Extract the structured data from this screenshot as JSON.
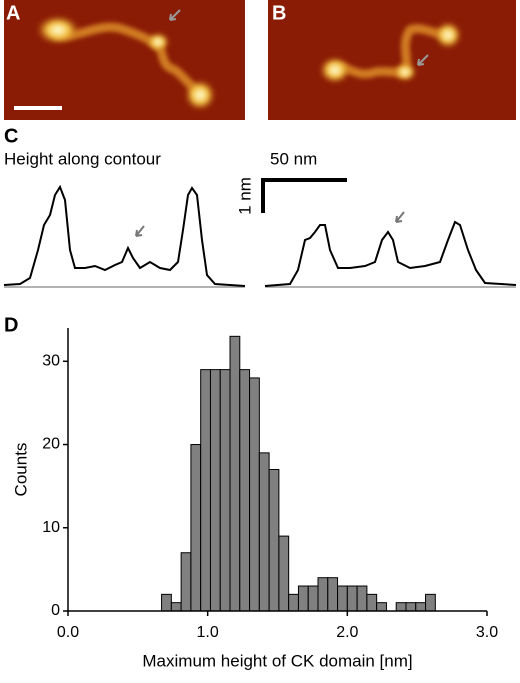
{
  "panels": {
    "a": "A",
    "b": "B",
    "c": "C",
    "d": "D"
  },
  "profile_title": "Height along contour",
  "scale_x": "50 nm",
  "scale_y": "1 nm",
  "chart_data": {
    "type": "histogram",
    "xlabel": "Maximum height of CK domain [nm]",
    "ylabel": "Counts",
    "bins": [
      0.67,
      0.74,
      0.81,
      0.88,
      0.95,
      1.02,
      1.09,
      1.16,
      1.23,
      1.3,
      1.37,
      1.44,
      1.51,
      1.58,
      1.65,
      1.72,
      1.79,
      1.86,
      1.93,
      2.0,
      2.07,
      2.14,
      2.21,
      2.28,
      2.35,
      2.42,
      2.49,
      2.56,
      2.63
    ],
    "values": [
      2,
      1,
      7,
      20,
      29,
      29,
      29,
      33,
      29,
      28,
      19,
      17,
      9,
      2,
      3,
      3,
      4,
      4,
      3,
      3,
      3,
      2,
      1,
      0,
      1,
      1,
      1,
      2
    ],
    "color": "#808080",
    "xlim": [
      0,
      3
    ],
    "xticks": [
      {
        "value": 0,
        "label": "0.0"
      },
      {
        "value": 1,
        "label": "1.0"
      },
      {
        "value": 2,
        "label": "2.0"
      },
      {
        "value": 3,
        "label": "3.0"
      }
    ],
    "ylim": [
      0,
      34
    ],
    "yticks": [
      0,
      10,
      20,
      30
    ]
  }
}
